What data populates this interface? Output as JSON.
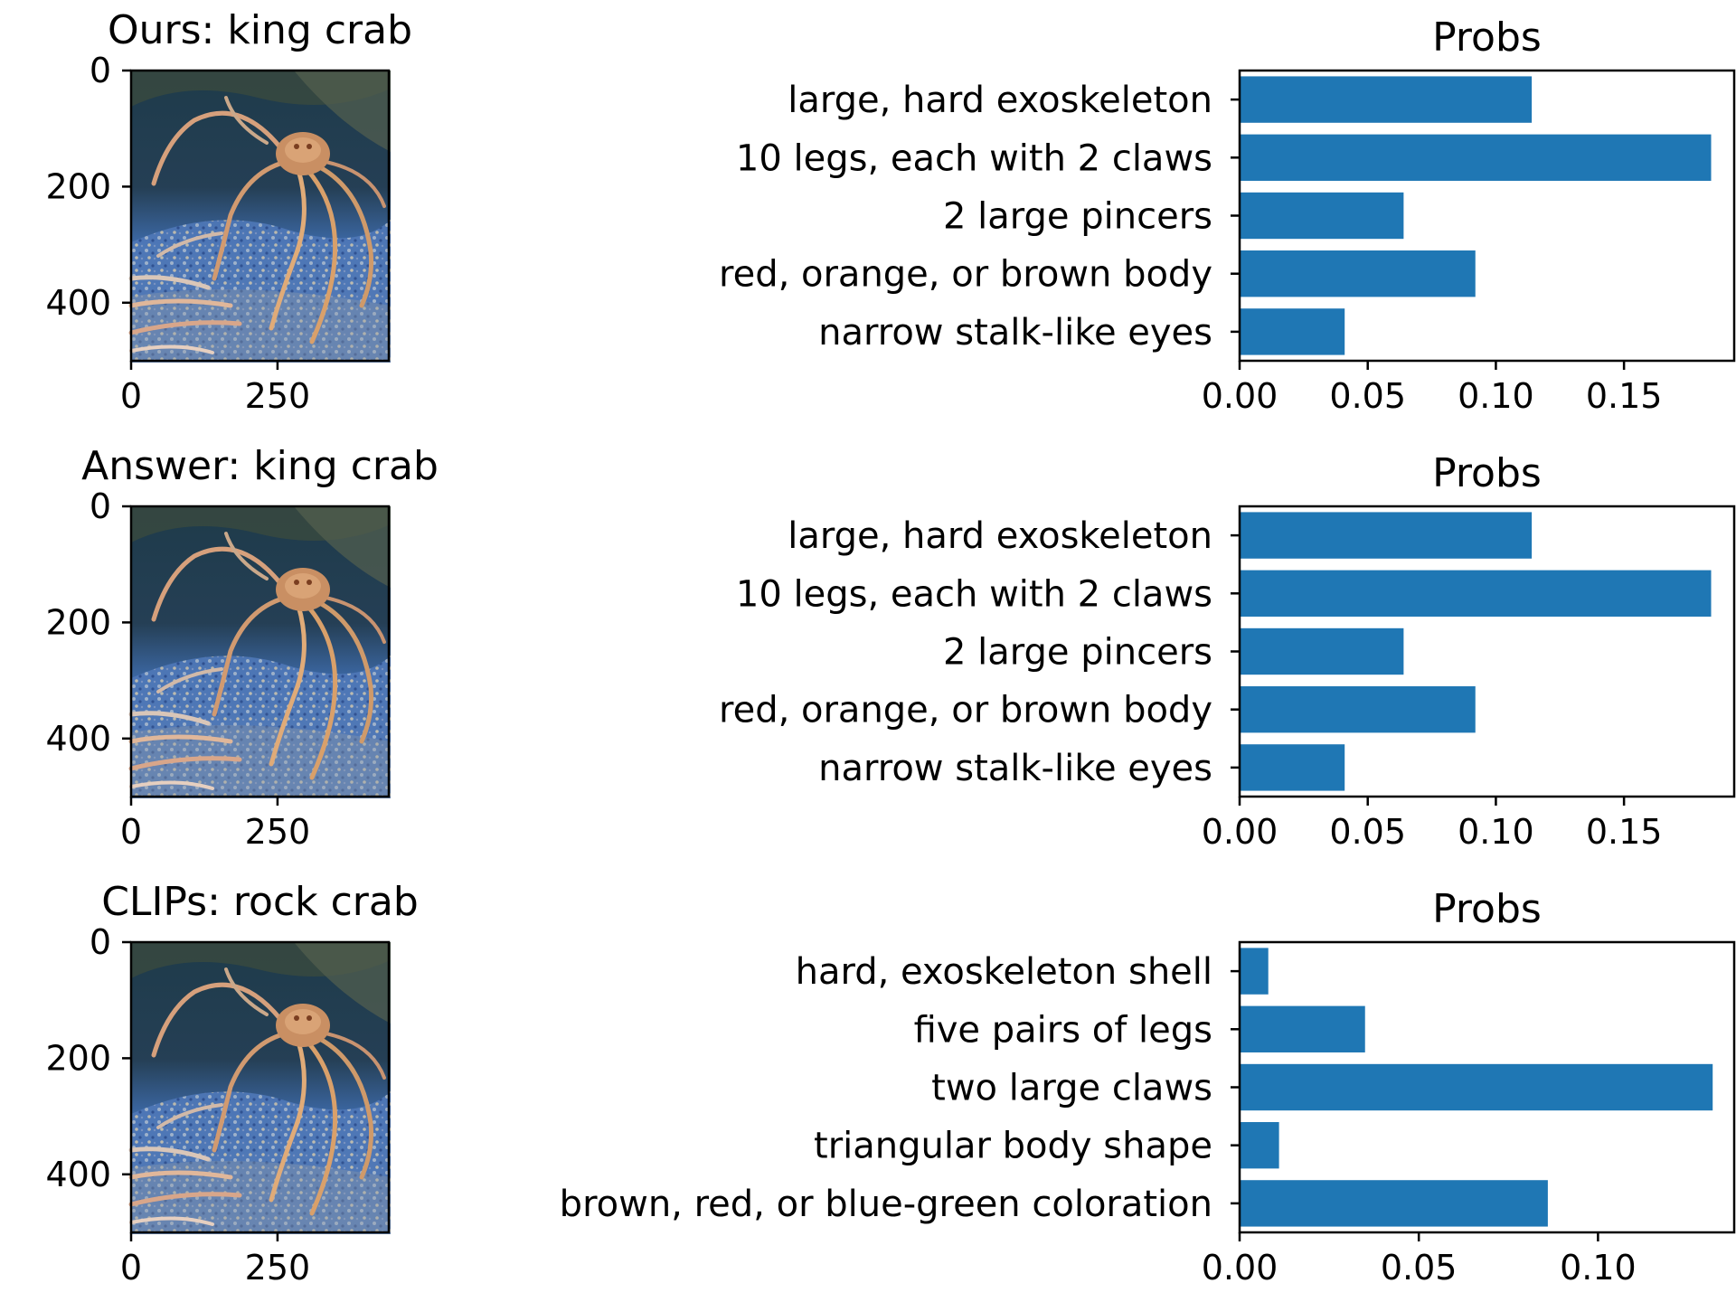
{
  "chart_data": [
    {
      "type": "image",
      "title": "Ours: king crab",
      "image": "photo of a spider crab on a blue gravel aquarium floor",
      "x_ticks": [
        0,
        250
      ],
      "y_ticks": [
        0,
        200,
        400
      ],
      "xlim": [
        0,
        440
      ],
      "ylim": [
        500,
        0
      ]
    },
    {
      "type": "bar",
      "orientation": "horizontal",
      "title": "Probs",
      "categories": [
        "large, hard exoskeleton",
        "10 legs, each with 2 claws",
        "2 large pincers",
        "red, orange, or brown body",
        "narrow stalk-like eyes"
      ],
      "values": [
        0.114,
        0.184,
        0.064,
        0.092,
        0.041
      ],
      "xlim": [
        0,
        0.193
      ],
      "x_ticks": [
        "0.00",
        "0.05",
        "0.10",
        "0.15"
      ],
      "color": "#1f77b4"
    },
    {
      "type": "image",
      "title": "Answer: king crab",
      "image": "photo of a spider crab on a blue gravel aquarium floor",
      "x_ticks": [
        0,
        250
      ],
      "y_ticks": [
        0,
        200,
        400
      ],
      "xlim": [
        0,
        440
      ],
      "ylim": [
        500,
        0
      ]
    },
    {
      "type": "bar",
      "orientation": "horizontal",
      "title": "Probs",
      "categories": [
        "large, hard exoskeleton",
        "10 legs, each with 2 claws",
        "2 large pincers",
        "red, orange, or brown body",
        "narrow stalk-like eyes"
      ],
      "values": [
        0.114,
        0.184,
        0.064,
        0.092,
        0.041
      ],
      "xlim": [
        0,
        0.193
      ],
      "x_ticks": [
        "0.00",
        "0.05",
        "0.10",
        "0.15"
      ],
      "color": "#1f77b4"
    },
    {
      "type": "image",
      "title": "CLIPs: rock crab",
      "image": "photo of a spider crab on a blue gravel aquarium floor",
      "x_ticks": [
        0,
        250
      ],
      "y_ticks": [
        0,
        200,
        400
      ],
      "xlim": [
        0,
        440
      ],
      "ylim": [
        500,
        0
      ]
    },
    {
      "type": "bar",
      "orientation": "horizontal",
      "title": "Probs",
      "categories": [
        "hard, exoskeleton shell",
        "five pairs of legs",
        "two large claws",
        "triangular body shape",
        "brown, red, or blue-green coloration"
      ],
      "values": [
        0.008,
        0.035,
        0.132,
        0.011,
        0.086
      ],
      "xlim": [
        0,
        0.138
      ],
      "x_ticks": [
        "0.00",
        "0.05",
        "0.10"
      ],
      "color": "#1f77b4"
    }
  ]
}
